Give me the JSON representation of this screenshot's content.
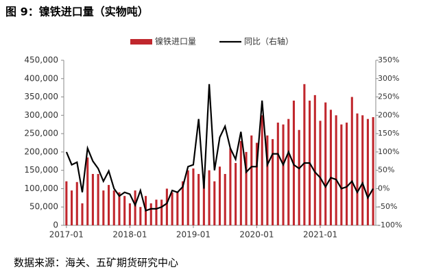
{
  "title": "图 9：镍铁进口量（实物吨）",
  "source": "数据来源：海关、五矿期货研究中心",
  "chart_data": {
    "type": "bar_line",
    "categories": [
      "2017-01",
      null,
      null,
      null,
      null,
      null,
      null,
      null,
      null,
      null,
      null,
      null,
      "2018-01",
      null,
      null,
      null,
      null,
      null,
      null,
      null,
      null,
      null,
      null,
      null,
      "2019-01",
      null,
      null,
      null,
      null,
      null,
      null,
      null,
      null,
      null,
      null,
      null,
      "2020-01",
      null,
      null,
      null,
      null,
      null,
      null,
      null,
      null,
      null,
      null,
      null,
      "2021-01",
      null,
      null,
      null,
      null,
      null,
      null,
      null,
      null,
      null,
      null
    ],
    "series": [
      {
        "name": "镍铁进口量",
        "type": "bar",
        "color": "#c0272d",
        "axis": "y",
        "values": [
          120000,
          95000,
          118000,
          60000,
          185000,
          140000,
          140000,
          95000,
          110000,
          95000,
          90000,
          80000,
          60000,
          95000,
          50000,
          80000,
          60000,
          70000,
          70000,
          100000,
          90000,
          90000,
          120000,
          150000,
          155000,
          140000,
          120000,
          150000,
          120000,
          160000,
          140000,
          210000,
          170000,
          230000,
          200000,
          245000,
          225000,
          300000,
          245000,
          235000,
          280000,
          275000,
          290000,
          340000,
          260000,
          385000,
          340000,
          355000,
          285000,
          335000,
          315000,
          300000,
          275000,
          280000,
          350000,
          305000,
          300000,
          290000,
          295000
        ]
      },
      {
        "name": "同比（右轴）",
        "type": "line",
        "color": "#000000",
        "axis": "y2",
        "values": [
          100,
          65,
          72,
          -10,
          110,
          75,
          55,
          20,
          48,
          0,
          -20,
          -10,
          -15,
          -45,
          -5,
          -60,
          -55,
          -55,
          -50,
          -40,
          -5,
          -10,
          5,
          60,
          65,
          190,
          0,
          285,
          50,
          140,
          170,
          110,
          80,
          155,
          45,
          60,
          60,
          240,
          65,
          95,
          95,
          65,
          100,
          65,
          55,
          70,
          70,
          45,
          30,
          5,
          30,
          25,
          0,
          5,
          20,
          -10,
          15,
          -25,
          0
        ]
      }
    ],
    "ylim": [
      0,
      450000
    ],
    "yticks": [
      0,
      {
        "value": 50000,
        "label": "50,000"
      },
      {
        "value": 100000,
        "label": "100,000"
      },
      {
        "value": 150000,
        "label": "150,000"
      },
      {
        "value": 200000,
        "label": "200,000"
      },
      {
        "value": 250000,
        "label": "250,000"
      },
      {
        "value": 300000,
        "label": "300,000"
      },
      {
        "value": 350000,
        "label": "350,000"
      },
      {
        "value": 400000,
        "label": "400,000"
      },
      {
        "value": 450000,
        "label": "450,000"
      }
    ],
    "y2lim": [
      -100,
      350
    ],
    "y2ticks": [
      {
        "value": -100,
        "label": "-100%"
      },
      {
        "value": -50,
        "label": "-50%"
      },
      {
        "value": 0,
        "label": "0%"
      },
      {
        "value": 50,
        "label": "50%"
      },
      {
        "value": 100,
        "label": "100%"
      },
      {
        "value": 150,
        "label": "150%"
      },
      {
        "value": 200,
        "label": "200%"
      },
      {
        "value": 250,
        "label": "250%"
      },
      {
        "value": 300,
        "label": "300%"
      },
      {
        "value": 350,
        "label": "350%"
      }
    ],
    "legend": "top"
  }
}
